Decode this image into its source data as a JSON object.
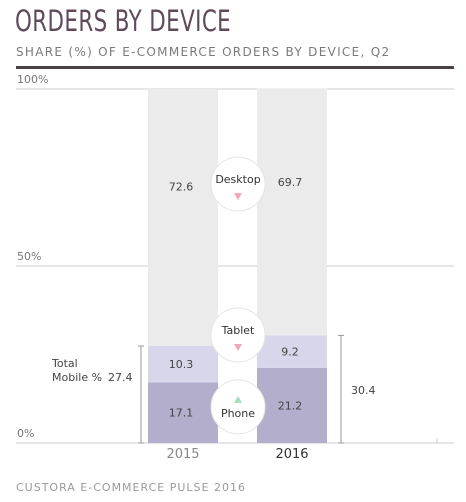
{
  "title": "ORDERS BY DEVICE",
  "subtitle": "SHARE (%) OF E-COMMERCE ORDERS BY DEVICE, Q2",
  "footer": "CUSTORA E-COMMERCE PULSE 2016",
  "colors": {
    "desktop": "#ebebeb",
    "tablet": "#d8d6ea",
    "phone": "#b3aecb",
    "gridline": "#cccccc",
    "bracket": "#999999",
    "down_arrow": "#f0a7b7",
    "up_arrow": "#a7dbc0",
    "title": "#5e4a5b"
  },
  "chart_data": {
    "type": "bar",
    "stacked": true,
    "categories": [
      "2015",
      "2016"
    ],
    "series": [
      {
        "name": "Phone",
        "values": [
          17.1,
          21.2
        ],
        "trend": "up"
      },
      {
        "name": "Tablet",
        "values": [
          10.3,
          9.2
        ],
        "trend": "down"
      },
      {
        "name": "Desktop",
        "values": [
          72.6,
          69.7
        ],
        "trend": "down"
      }
    ],
    "yticks": [
      "0%",
      "50%",
      "100%"
    ],
    "ylim": [
      0,
      100
    ],
    "grid": true,
    "annotations": {
      "total_mobile_label": [
        "Total",
        "Mobile %"
      ],
      "total_mobile_values": [
        "27.4",
        "30.4"
      ]
    }
  }
}
